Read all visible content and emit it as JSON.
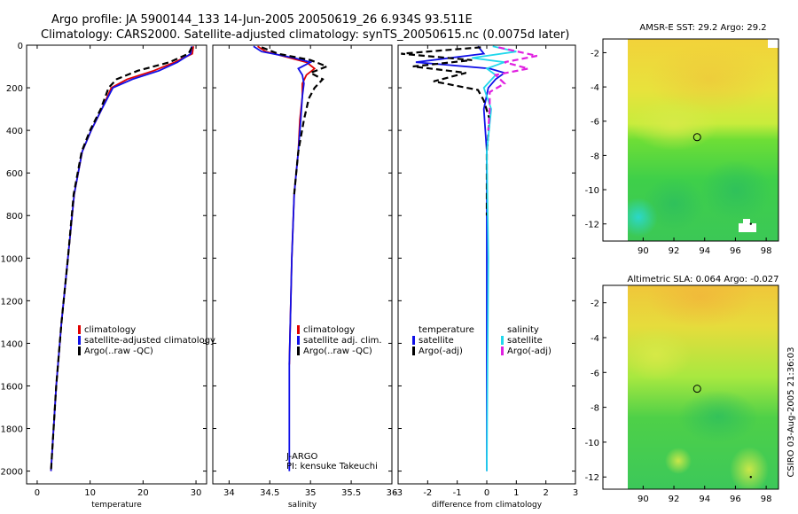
{
  "figure": {
    "title_line1": "Argo profile: JA 5900144_133 14-Jun-2005 20050619_26 6.934S 93.511E",
    "title_line2": "Climatology: CARS2000. Satellite-adjusted climatology: synTS_20050615.nc (0.0075d later)",
    "side_label": "CSIRO 03-Aug-2005 21:36:03"
  },
  "colors": {
    "red": "#e00000",
    "blue": "#1010e8",
    "black": "#000000",
    "cyan": "#22d8ec",
    "magenta": "#e020e0"
  },
  "chart_data": [
    {
      "id": "temperature",
      "type": "line",
      "xlabel": "temperature",
      "ylabel": "",
      "xlim": [
        -2,
        32
      ],
      "ylim": [
        2060,
        0
      ],
      "xticks": [
        "0",
        "10",
        "20",
        "30"
      ],
      "xtick_values": [
        0,
        10,
        20,
        30
      ],
      "yticks": [
        "0",
        "200",
        "400",
        "600",
        "800",
        "1000",
        "1200",
        "1400",
        "1600",
        "1800",
        "2000"
      ],
      "ytick_values": [
        0,
        200,
        400,
        600,
        800,
        1000,
        1200,
        1400,
        1600,
        1800,
        2000
      ],
      "legend": [
        {
          "label": "climatology",
          "color": "red"
        },
        {
          "label": "satellite-adjusted climatology",
          "color": "blue"
        },
        {
          "label": "Argo(..raw -QC)",
          "color": "black"
        }
      ],
      "series": [
        {
          "name": "climatology",
          "color": "red",
          "dash": false,
          "x": [
            29.5,
            29.3,
            26,
            22,
            17,
            14,
            12.2,
            10.2,
            8.5,
            7,
            5.8,
            4.6,
            3.6,
            2.6
          ],
          "y": [
            5,
            40,
            80,
            120,
            160,
            200,
            300,
            400,
            500,
            700,
            1000,
            1300,
            1600,
            2000
          ]
        },
        {
          "name": "satellite-adjusted climatology",
          "color": "blue",
          "dash": false,
          "x": [
            29.2,
            29,
            26.5,
            23,
            18,
            14.3,
            12.2,
            10.2,
            8.5,
            7,
            5.8,
            4.6,
            3.6,
            2.6
          ],
          "y": [
            5,
            40,
            80,
            120,
            160,
            200,
            300,
            400,
            500,
            700,
            1000,
            1300,
            1600,
            2000
          ]
        },
        {
          "name": "Argo(..raw -QC)",
          "color": "black",
          "dash": true,
          "x": [
            29.2,
            28.6,
            25,
            19,
            15,
            13.5,
            12,
            10,
            8.4,
            6.9,
            5.8,
            4.6,
            3.6,
            2.6
          ],
          "y": [
            10,
            40,
            80,
            120,
            160,
            200,
            300,
            400,
            500,
            700,
            1000,
            1300,
            1600,
            2000
          ]
        }
      ]
    },
    {
      "id": "salinity",
      "type": "line",
      "xlabel": "salinity",
      "ylabel": "",
      "xlim": [
        33.8,
        36.0
      ],
      "ylim": [
        2060,
        0
      ],
      "xticks": [
        "34",
        "34.5",
        "35",
        "35.5",
        "36"
      ],
      "xtick_values": [
        34,
        34.5,
        35,
        35.5,
        36
      ],
      "yticks": [],
      "ytick_values": [],
      "legend": [
        {
          "label": "climatology",
          "color": "red"
        },
        {
          "label": "satellite adj. clim.",
          "color": "blue"
        },
        {
          "label": "Argo(..raw -QC)",
          "color": "black"
        }
      ],
      "annotations": [
        "J-ARGO",
        "PI: kensuke Takeuchi"
      ],
      "series": [
        {
          "name": "climatology",
          "color": "red",
          "dash": false,
          "x": [
            34.35,
            34.45,
            34.75,
            34.95,
            35.05,
            34.95,
            34.9,
            34.9,
            34.87,
            34.85,
            34.8,
            34.77,
            34.74
          ],
          "y": [
            5,
            30,
            60,
            80,
            110,
            140,
            180,
            240,
            350,
            500,
            700,
            1000,
            1500
          ]
        },
        {
          "name": "satellite adj. clim.",
          "color": "blue",
          "dash": false,
          "x": [
            34.3,
            34.4,
            34.8,
            35.0,
            34.85,
            34.9,
            34.92,
            34.9,
            34.88,
            34.85,
            34.8,
            34.77,
            34.74,
            34.74
          ],
          "y": [
            5,
            30,
            60,
            80,
            110,
            140,
            180,
            240,
            350,
            500,
            700,
            1000,
            1500,
            2000
          ]
        },
        {
          "name": "Argo(..raw -QC)",
          "color": "black",
          "dash": true,
          "x": [
            34.4,
            34.6,
            35.0,
            35.2,
            35.0,
            35.15,
            35.05,
            34.98,
            34.92,
            34.85,
            34.8
          ],
          "y": [
            10,
            40,
            70,
            100,
            130,
            160,
            200,
            250,
            350,
            500,
            700
          ]
        }
      ]
    },
    {
      "id": "difference",
      "type": "line",
      "xlabel": "difference from climatology",
      "ylabel": "",
      "xlim": [
        -3,
        3
      ],
      "ylim": [
        2060,
        0
      ],
      "xticks": [
        "-3",
        "-2",
        "-1",
        "0",
        "1",
        "2",
        "3"
      ],
      "xtick_values": [
        -3,
        -2,
        -1,
        0,
        1,
        2,
        3
      ],
      "yticks": [],
      "ytick_values": [],
      "legend": [
        {
          "label": "temperature",
          "color": ""
        },
        {
          "label": "satellite",
          "color": "blue"
        },
        {
          "label": "Argo(-adj)",
          "color": "black"
        },
        {
          "label": "salinity",
          "color": ""
        },
        {
          "label": "satellite",
          "color": "cyan"
        },
        {
          "label": "Argo(-adj)",
          "color": "magenta"
        }
      ],
      "series": [
        {
          "name": "temperature satellite",
          "color": "blue",
          "dash": false,
          "x": [
            -0.3,
            -0.1,
            -2.4,
            0.1,
            0.6,
            0.3,
            0.05,
            -0.1,
            0,
            0,
            0
          ],
          "y": [
            5,
            40,
            80,
            110,
            130,
            160,
            200,
            300,
            500,
            1000,
            2000
          ]
        },
        {
          "name": "temperature Argo(-adj)",
          "color": "black",
          "dash": true,
          "x": [
            -0.2,
            -2.9,
            -0.5,
            -2.5,
            -0.7,
            -1.8,
            -0.3,
            -0.1,
            0.1,
            0,
            0
          ],
          "y": [
            10,
            40,
            70,
            100,
            130,
            170,
            210,
            260,
            350,
            500,
            800
          ]
        },
        {
          "name": "salinity satellite",
          "color": "cyan",
          "dash": false,
          "x": [
            0.2,
            1.0,
            -0.5,
            0.6,
            0,
            0.3,
            -0.1,
            0.15,
            0,
            0.05,
            0
          ],
          "y": [
            5,
            30,
            60,
            80,
            110,
            140,
            200,
            300,
            500,
            1000,
            2000
          ]
        },
        {
          "name": "salinity Argo(-adj)",
          "color": "magenta",
          "dash": true,
          "x": [
            0.4,
            1.7,
            0.6,
            1.4,
            0.3,
            0.6,
            0.1,
            0.1,
            0.05
          ],
          "y": [
            10,
            50,
            80,
            110,
            140,
            180,
            220,
            300,
            400
          ]
        }
      ]
    },
    {
      "id": "sst_map",
      "type": "heatmap",
      "title": "AMSR-E SST: 29.2 Argo: 29.2",
      "xlim": [
        89,
        98.8
      ],
      "ylim": [
        -13,
        -1.2
      ],
      "xticks": [
        "90",
        "92",
        "94",
        "96",
        "98"
      ],
      "xtick_values": [
        90,
        92,
        94,
        96,
        98
      ],
      "yticks": [
        "-2",
        "-4",
        "-6",
        "-8",
        "-10",
        "-12"
      ],
      "ytick_values": [
        -2,
        -4,
        -6,
        -8,
        -10,
        -12
      ],
      "marker": {
        "lon": 93.511,
        "lat": -6.934
      }
    },
    {
      "id": "sla_map",
      "type": "heatmap",
      "title": "Altimetric SLA: 0.064 Argo: -0.027",
      "xlim": [
        89,
        98.8
      ],
      "ylim": [
        -12.7,
        -1
      ],
      "xticks": [
        "90",
        "92",
        "94",
        "96",
        "98"
      ],
      "xtick_values": [
        90,
        92,
        94,
        96,
        98
      ],
      "yticks": [
        "-2",
        "-4",
        "-6",
        "-8",
        "-10",
        "-12"
      ],
      "ytick_values": [
        -2,
        -4,
        -6,
        -8,
        -10,
        -12
      ],
      "marker": {
        "lon": 93.511,
        "lat": -6.934
      }
    }
  ]
}
